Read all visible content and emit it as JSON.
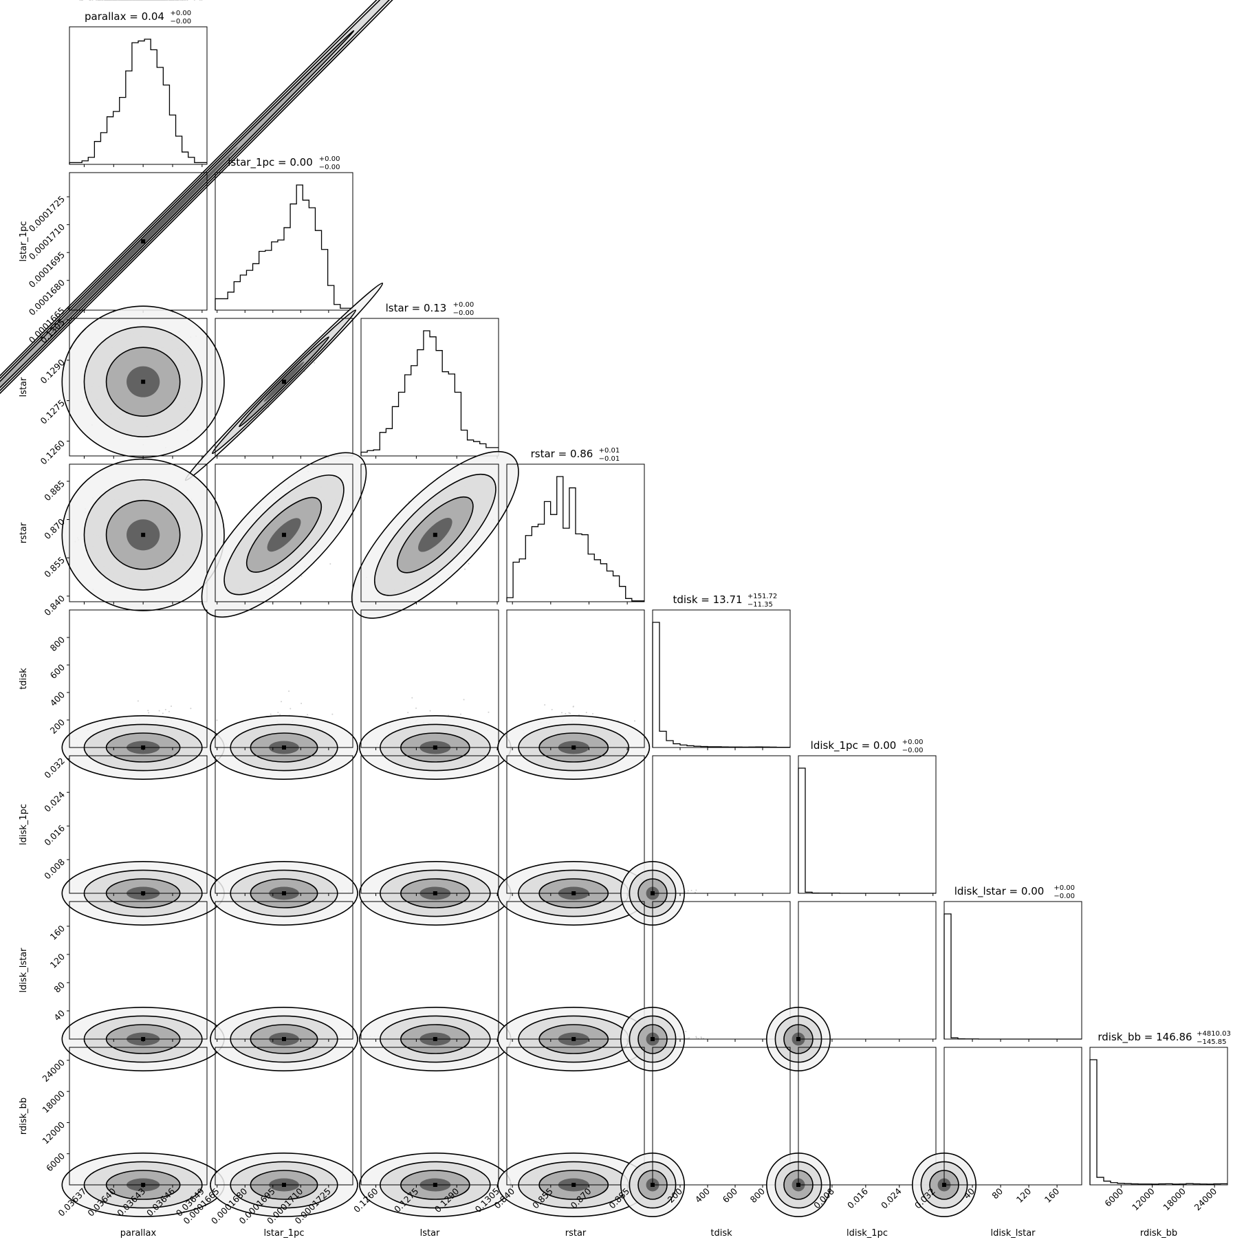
{
  "chart_data": {
    "type": "corner",
    "parameters": [
      {
        "name": "parallax",
        "label": "parallax",
        "title_main": "parallax = 0.04",
        "title_plus": "+0.00",
        "title_minus": "−0.00",
        "range": [
          0.036355,
          0.036495
        ],
        "ticks": [
          0.03637,
          0.0364,
          0.03643,
          0.03646,
          0.03649
        ],
        "tick_labels": [
          "0.03637",
          "0.03640",
          "0.03643",
          "0.03646",
          "0.03649"
        ],
        "median": 0.03643,
        "dist": "gauss",
        "sigma": 2.5e-05
      },
      {
        "name": "lstar_1pc",
        "label": "lstar_1pc",
        "title_main": "lstar_1pc = 0.00",
        "title_plus": "+0.00",
        "title_minus": "−0.00",
        "range": [
          0.0001664,
          0.0001738
        ],
        "ticks": [
          0.0001665,
          0.000168,
          0.0001695,
          0.000171,
          0.0001725
        ],
        "tick_labels": [
          "0.0001665",
          "0.0001680",
          "0.0001695",
          "0.0001710",
          "0.0001725"
        ],
        "median": 0.0001701,
        "dist": "gauss",
        "sigma": 1.2e-06
      },
      {
        "name": "lstar",
        "label": "lstar",
        "title_main": "lstar = 0.13",
        "title_plus": "+0.00",
        "title_minus": "−0.00",
        "range": [
          0.12545,
          0.13055
        ],
        "ticks": [
          0.126,
          0.1275,
          0.129,
          0.1305
        ],
        "tick_labels": [
          "0.1260",
          "0.1275",
          "0.1290",
          "0.1305"
        ],
        "median": 0.1282,
        "dist": "gauss",
        "sigma": 0.00085
      },
      {
        "name": "rstar",
        "label": "rstar",
        "title_main": "rstar = 0.86",
        "title_plus": "+0.01",
        "title_minus": "−0.01",
        "range": [
          0.8378,
          0.8917
        ],
        "ticks": [
          0.84,
          0.855,
          0.87,
          0.885
        ],
        "tick_labels": [
          "0.840",
          "0.855",
          "0.870",
          "0.885"
        ],
        "median": 0.864,
        "dist": "gauss",
        "sigma": 0.009
      },
      {
        "name": "tdisk",
        "label": "tdisk",
        "title_main": "tdisk = 13.71",
        "title_plus": "+151.72",
        "title_minus": "−11.35",
        "range": [
          0,
          1000
        ],
        "ticks": [
          200,
          400,
          600,
          800
        ],
        "tick_labels": [
          "200",
          "400",
          "600",
          "800"
        ],
        "median": 13.71,
        "dist": "exp",
        "sigma": 60
      },
      {
        "name": "ldisk_1pc",
        "label": "ldisk_1pc",
        "title_main": "ldisk_1pc = 0.00",
        "title_plus": "+0.00",
        "title_minus": "−0.00",
        "range": [
          0,
          0.0327
        ],
        "ticks": [
          0.008,
          0.016,
          0.024,
          0.032
        ],
        "tick_labels": [
          "0.008",
          "0.016",
          "0.024",
          "0.032"
        ],
        "median": 0.0,
        "dist": "exp",
        "sigma": 0.0003
      },
      {
        "name": "ldisk_lstar",
        "label": "ldisk_lstar",
        "title_main": "ldisk_lstar = 0.00",
        "title_plus": "+0.00",
        "title_minus": "−0.00",
        "range": [
          0,
          195
        ],
        "ticks": [
          40,
          80,
          120,
          160
        ],
        "tick_labels": [
          "40",
          "80",
          "120",
          "160"
        ],
        "median": 0.0,
        "dist": "exp",
        "sigma": 2
      },
      {
        "name": "rdisk_bb",
        "label": "rdisk_bb",
        "title_main": "rdisk_bb = 146.86",
        "title_plus": "+4810.03",
        "title_minus": "−145.85",
        "range": [
          0,
          26500
        ],
        "ticks": [
          6000,
          12000,
          18000,
          24000
        ],
        "tick_labels": [
          "6000",
          "12000",
          "18000",
          "24000"
        ],
        "median": 146.86,
        "dist": "exp",
        "sigma": 600
      }
    ],
    "histograms": [
      [
        1,
        1,
        2,
        4,
        13,
        18,
        27,
        30,
        38,
        53,
        69,
        70,
        71,
        65,
        55,
        45,
        28,
        16,
        7,
        4,
        1,
        1
      ],
      [
        12,
        12,
        19,
        30,
        37,
        42,
        49,
        62,
        63,
        72,
        74,
        87,
        112,
        132,
        116,
        108,
        84,
        64,
        26,
        6,
        2,
        2
      ],
      [
        5,
        7,
        8,
        31,
        36,
        65,
        84,
        107,
        119,
        140,
        165,
        157,
        139,
        111,
        108,
        84,
        34,
        21,
        19,
        16,
        11,
        11
      ],
      [
        5,
        49,
        53,
        82,
        93,
        96,
        124,
        108,
        155,
        91,
        141,
        84,
        83,
        59,
        52,
        47,
        38,
        32,
        19,
        4,
        1,
        1
      ],
      [
        1000,
        130,
        55,
        30,
        20,
        14,
        10,
        8,
        6,
        6,
        5,
        4,
        4,
        3,
        4,
        5,
        4,
        3,
        2,
        2
      ],
      [
        1000,
        9,
        2,
        1,
        1,
        1,
        0,
        0,
        0,
        0,
        0,
        0,
        0,
        0,
        0,
        0,
        0,
        0,
        0,
        0
      ],
      [
        1000,
        10,
        2,
        1,
        1,
        0,
        0,
        0,
        0,
        0,
        0,
        0,
        0,
        0,
        0,
        0,
        0,
        0,
        0,
        0
      ],
      [
        1000,
        60,
        30,
        18,
        12,
        10,
        8,
        7,
        7,
        6,
        8,
        9,
        6,
        7,
        10,
        8,
        7,
        6,
        8,
        9
      ]
    ],
    "correlations": [
      [
        0,
        1,
        8
      ],
      [
        1,
        2,
        0.985
      ],
      [
        2,
        3,
        0.55
      ],
      [
        1,
        3,
        0.55
      ]
    ]
  }
}
